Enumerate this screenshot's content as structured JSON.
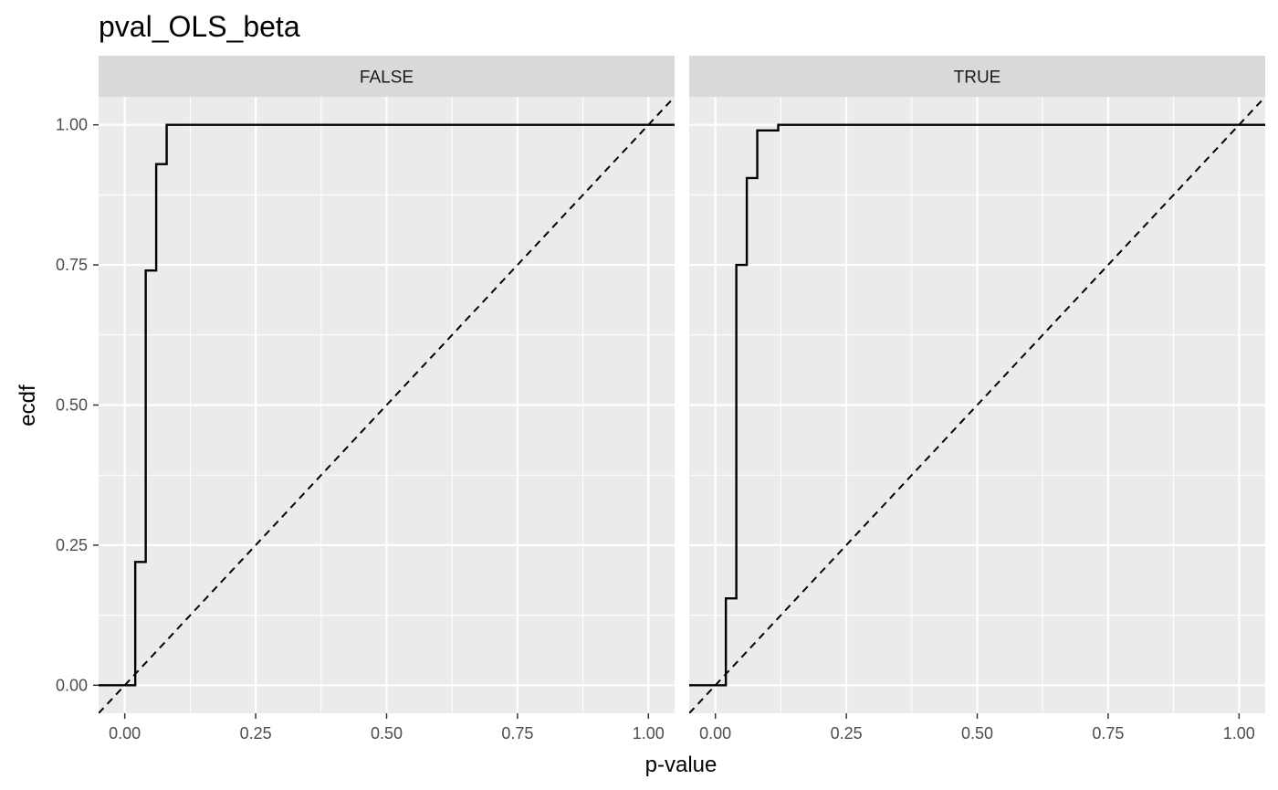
{
  "chart_data": {
    "type": "line",
    "title": "pval_OLS_beta",
    "xlabel": "p-value",
    "ylabel": "ecdf",
    "xlim": [
      -0.05,
      1.05
    ],
    "ylim": [
      -0.05,
      1.05
    ],
    "x_ticks": [
      0.0,
      0.25,
      0.5,
      0.75,
      1.0
    ],
    "x_tick_labels": [
      "0.00",
      "0.25",
      "0.50",
      "0.75",
      "1.00"
    ],
    "y_ticks": [
      0.0,
      0.25,
      0.5,
      0.75,
      1.0
    ],
    "y_tick_labels": [
      "0.00",
      "0.25",
      "0.50",
      "0.75",
      "1.00"
    ],
    "grid": true,
    "reference_line": {
      "style": "dashed",
      "slope": 1,
      "intercept": 0
    },
    "panels": [
      {
        "label": "FALSE",
        "steps": [
          {
            "x": -0.05,
            "y": 0.0
          },
          {
            "x": 0.02,
            "y": 0.22
          },
          {
            "x": 0.04,
            "y": 0.74
          },
          {
            "x": 0.06,
            "y": 0.93
          },
          {
            "x": 0.08,
            "y": 1.0
          }
        ]
      },
      {
        "label": "TRUE",
        "steps": [
          {
            "x": -0.05,
            "y": 0.0
          },
          {
            "x": 0.02,
            "y": 0.155
          },
          {
            "x": 0.04,
            "y": 0.75
          },
          {
            "x": 0.06,
            "y": 0.905
          },
          {
            "x": 0.08,
            "y": 0.99
          },
          {
            "x": 0.12,
            "y": 1.0
          }
        ]
      }
    ]
  }
}
